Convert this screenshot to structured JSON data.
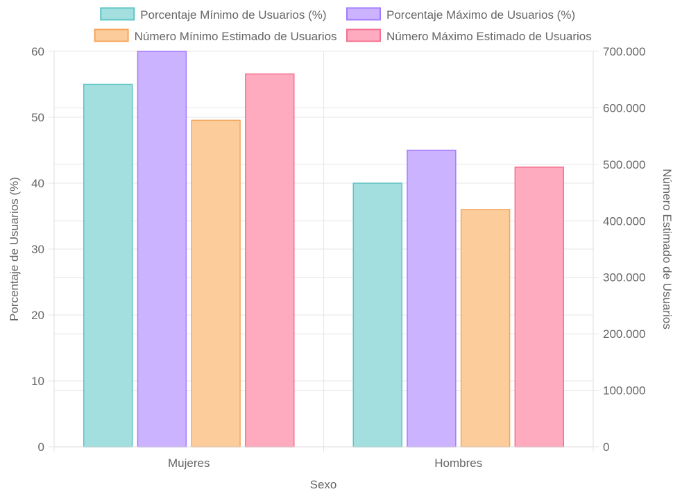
{
  "chart_data": {
    "type": "bar",
    "categories": [
      "Mujeres",
      "Hombres"
    ],
    "xlabel": "Sexo",
    "y_left": {
      "label": "Porcentaje de Usuarios (%)",
      "lim": [
        0,
        60
      ],
      "ticks": [
        "0",
        "10",
        "20",
        "30",
        "40",
        "50",
        "60"
      ]
    },
    "y_right": {
      "label": "Número Estimado de Usuarios",
      "lim": [
        0,
        700000
      ],
      "ticks": [
        "0",
        "100.000",
        "200.000",
        "300.000",
        "400.000",
        "500.000",
        "600.000",
        "700.000"
      ]
    },
    "series": [
      {
        "name": "Porcentaje Mínimo de Usuarios (%)",
        "axis": "left",
        "values": [
          55,
          40
        ],
        "fill": "#a3dfdf",
        "stroke": "#5ec4c4"
      },
      {
        "name": "Porcentaje Máximo de Usuarios (%)",
        "axis": "left",
        "values": [
          60,
          45
        ],
        "fill": "#ccb3ff",
        "stroke": "#a37bff"
      },
      {
        "name": "Número Mínimo Estimado de Usuarios",
        "axis": "right",
        "values": [
          578000,
          420000
        ],
        "fill": "#fdcc9b",
        "stroke": "#f4a55a"
      },
      {
        "name": "Número Máximo Estimado de Usuarios",
        "axis": "right",
        "values": [
          660000,
          495000
        ],
        "fill": "#feabc0",
        "stroke": "#f4718f"
      }
    ],
    "grid": true,
    "legend_position": "top"
  }
}
